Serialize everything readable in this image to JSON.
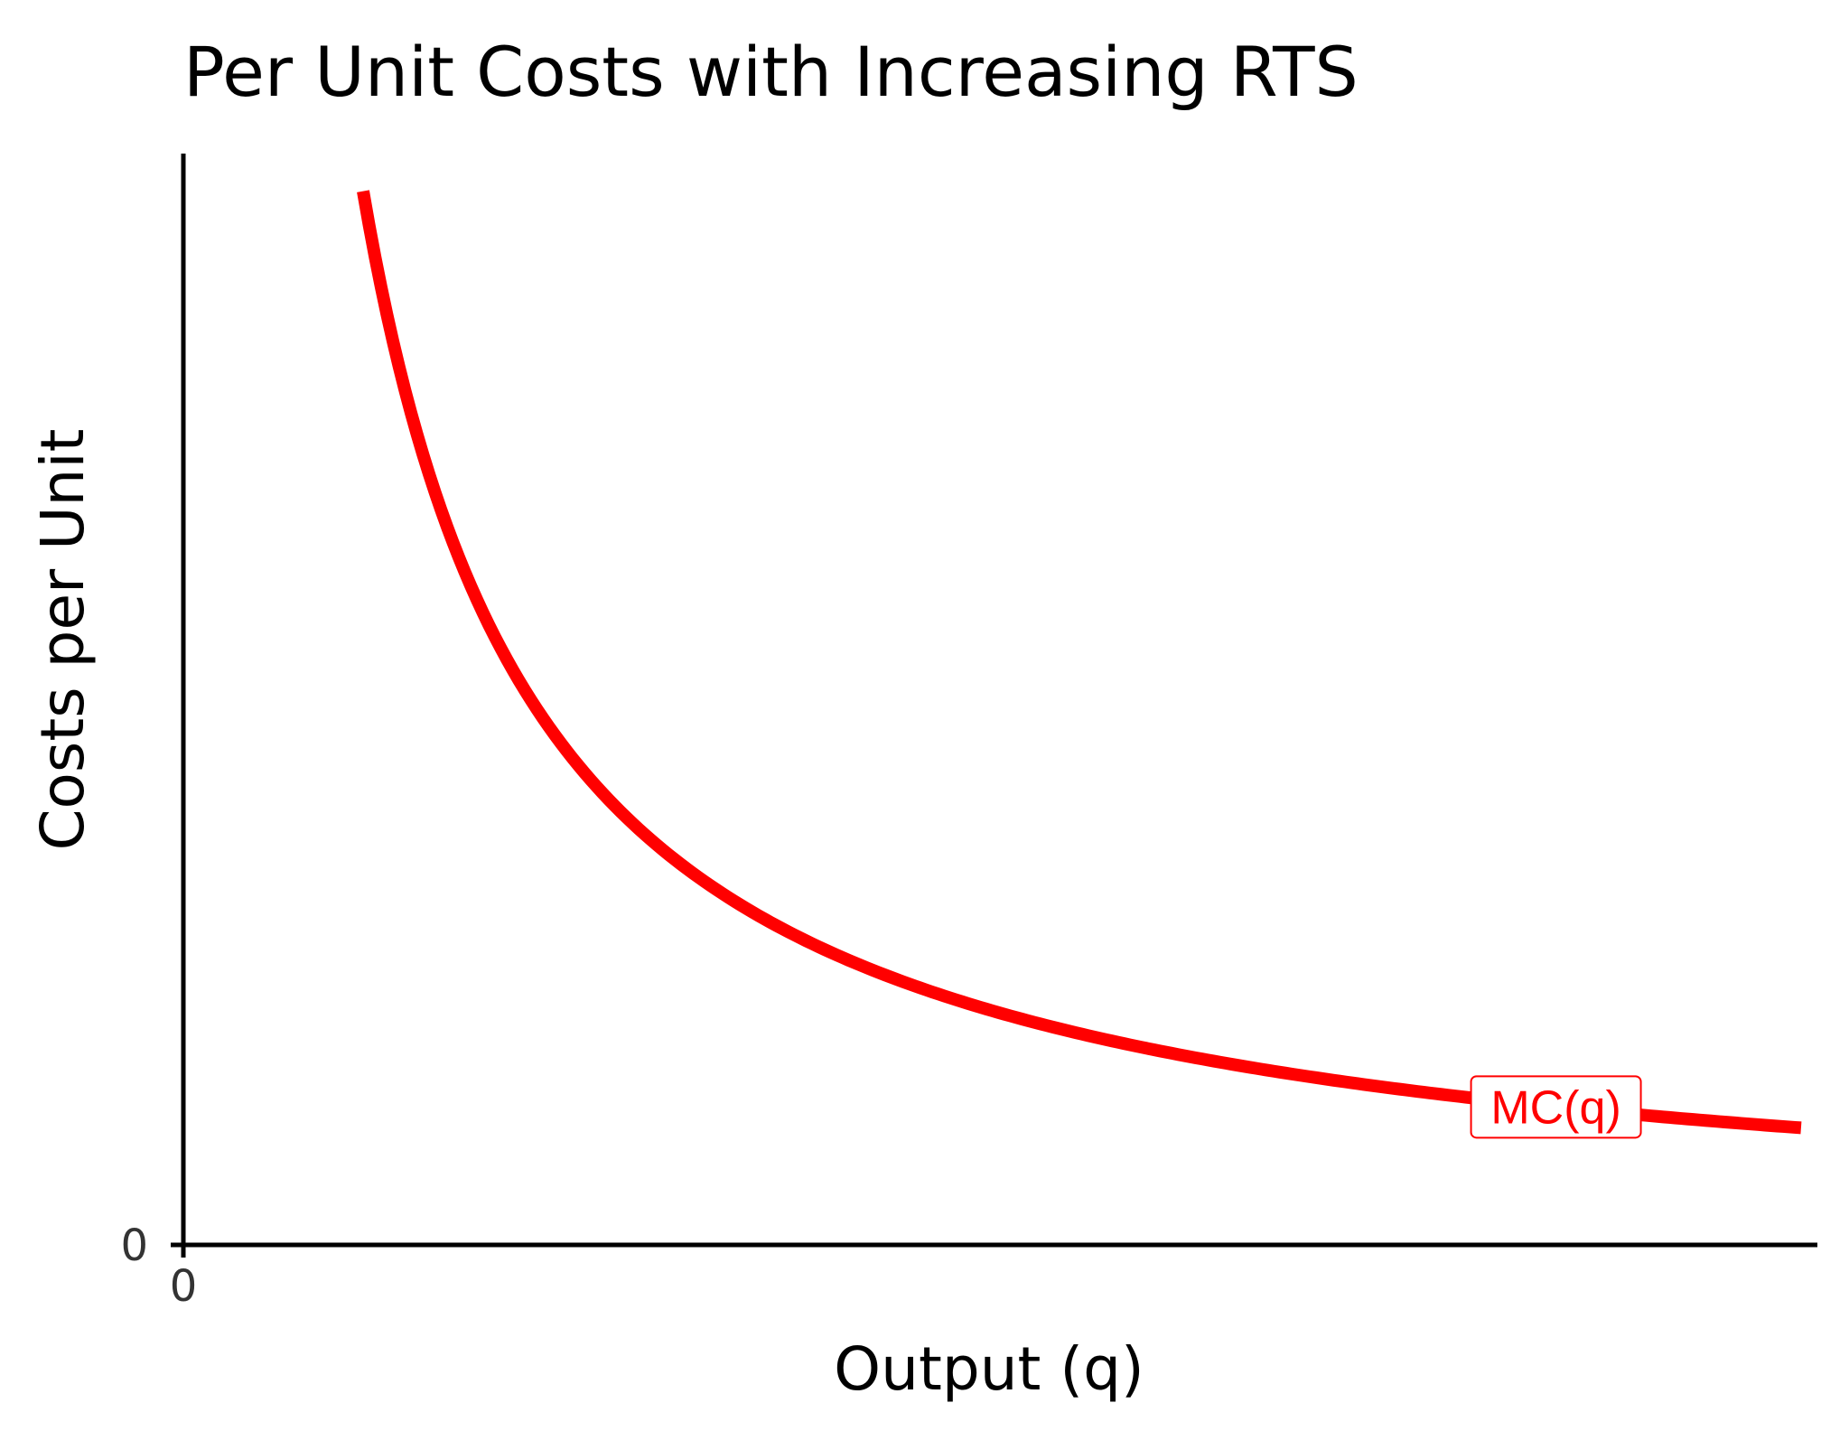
{
  "colors": {
    "curve": "#ff0000",
    "axis": "#000000",
    "background": "#ffffff"
  },
  "chart_data": {
    "type": "line",
    "title": "Per Unit Costs with Increasing RTS",
    "xlabel": "Output (q)",
    "ylabel": "Costs per Unit",
    "x_ticks": [
      "0"
    ],
    "y_ticks": [
      "0"
    ],
    "xlim": [
      0,
      10
    ],
    "ylim": [
      0,
      10
    ],
    "grid": false,
    "legend": "none",
    "series": [
      {
        "name": "MC(q)",
        "color": "#ff0000",
        "function": "1/q",
        "x": [
          1.1,
          1.3,
          1.6,
          2,
          2.5,
          3,
          4,
          5,
          6,
          7,
          8,
          9,
          9.9
        ],
        "y": [
          9.09,
          7.69,
          6.25,
          5.0,
          4.0,
          3.33,
          2.5,
          2.0,
          1.67,
          1.43,
          1.25,
          1.11,
          1.01
        ]
      }
    ],
    "annotations": [
      {
        "text": "MC(q)",
        "x": 8.4,
        "y": 1.19
      }
    ]
  }
}
